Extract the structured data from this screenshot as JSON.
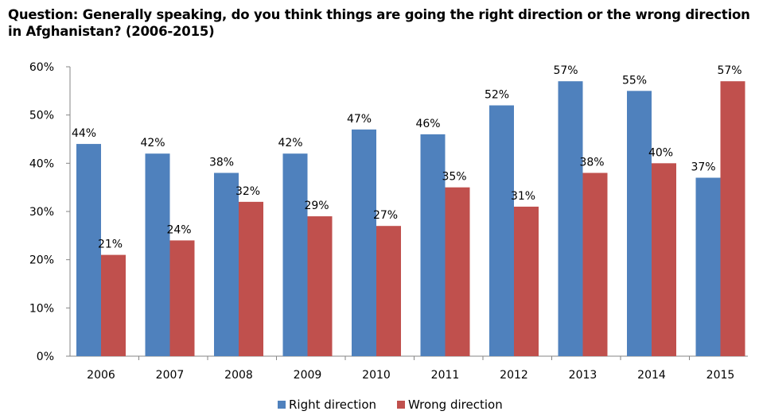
{
  "question": "Question: Generally speaking, do you think things are going the right direction or the wrong direction in Afghanistan? (2006-2015)",
  "chart_data": {
    "type": "bar",
    "title": "Question: Generally speaking, do you think things are going the right direction or the wrong direction in Afghanistan? (2006-2015)",
    "categories": [
      "2006",
      "2007",
      "2008",
      "2009",
      "2010",
      "2011",
      "2012",
      "2013",
      "2014",
      "2015"
    ],
    "series": [
      {
        "name": "Right direction",
        "color": "#4f81bd",
        "values": [
          44,
          42,
          38,
          42,
          47,
          46,
          52,
          57,
          55,
          37
        ]
      },
      {
        "name": "Wrong direction",
        "color": "#c0504d",
        "values": [
          21,
          24,
          32,
          29,
          27,
          35,
          31,
          38,
          40,
          57
        ]
      }
    ],
    "value_labels": {
      "Right direction": [
        "44%",
        "42%",
        "38%",
        "42%",
        "47%",
        "46%",
        "52%",
        "57%",
        "55%",
        "37%"
      ],
      "Wrong direction": [
        "21%",
        "24%",
        "32%",
        "29%",
        "27%",
        "35%",
        "31%",
        "38%",
        "40%",
        "57%"
      ]
    },
    "ylim": [
      0,
      60
    ],
    "yticks": [
      0,
      10,
      20,
      30,
      40,
      50,
      60
    ],
    "ytick_labels": [
      "0%",
      "10%",
      "20%",
      "30%",
      "40%",
      "50%",
      "60%"
    ],
    "xlabel": "",
    "ylabel": "",
    "grid": false,
    "legend_position": "bottom"
  }
}
